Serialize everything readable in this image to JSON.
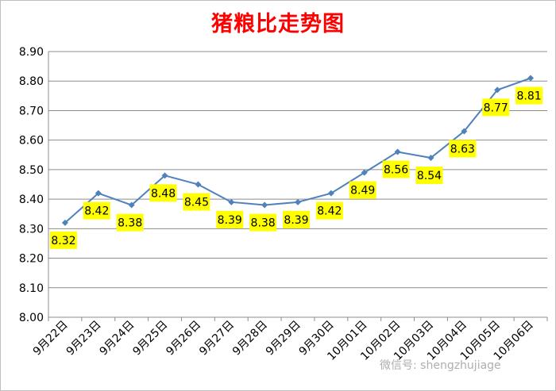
{
  "chart_data": {
    "type": "line",
    "title": "猪粮比走势图",
    "categories": [
      "9月22日",
      "9月23日",
      "9月24日",
      "9月25日",
      "9月26日",
      "9月27日",
      "9月28日",
      "9月29日",
      "9月30日",
      "10月01日",
      "10月02日",
      "10月03日",
      "10月04日",
      "10月05日",
      "10月06日"
    ],
    "values": [
      8.32,
      8.42,
      8.38,
      8.48,
      8.45,
      8.39,
      8.38,
      8.39,
      8.42,
      8.49,
      8.56,
      8.54,
      8.63,
      8.77,
      8.81
    ],
    "data_labels": [
      "8.32",
      "8.42",
      "8.38",
      "8.48",
      "8.45",
      "8.39",
      "8.38",
      "8.39",
      "8.42",
      "8.49",
      "8.56",
      "8.54",
      "8.63",
      "8.77",
      "8.81"
    ],
    "yticks": [
      "8.00",
      "8.10",
      "8.20",
      "8.30",
      "8.40",
      "8.50",
      "8.60",
      "8.70",
      "8.80",
      "8.90"
    ],
    "ylim": [
      8.0,
      8.9
    ],
    "xlabel": "",
    "ylabel": "",
    "grid": true,
    "legend": "none",
    "line_color": "#4f81bd",
    "label_bg_color": "#ffff00",
    "title_color": "#ff0000"
  },
  "watermark": "微信号: shengzhujiage"
}
